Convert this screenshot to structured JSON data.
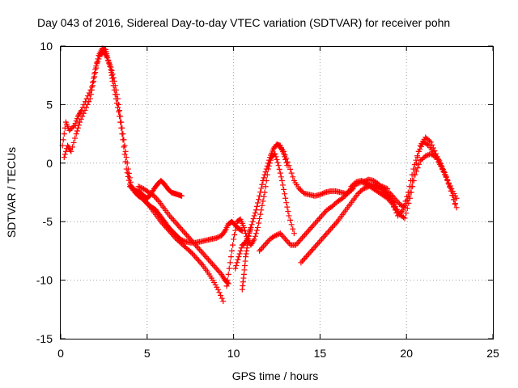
{
  "chart_data": {
    "type": "scatter",
    "title": "Day 043 of 2016, Sidereal Day-to-day VTEC variation (SDTVAR) for receiver pohn",
    "xlabel": "GPS time / hours",
    "ylabel": "SDTVAR / TECUs",
    "xlim": [
      0,
      25
    ],
    "ylim": [
      -15,
      10
    ],
    "xticks": [
      "0",
      "5",
      "10",
      "15",
      "20",
      "25"
    ],
    "yticks": [
      "10",
      "5",
      "0",
      "-5",
      "-10",
      "-15"
    ],
    "grid": true,
    "marker": "+",
    "series_color": "#ff0000",
    "series": [
      {
        "x": [
          0.1,
          0.3,
          0.5,
          0.8,
          1.0,
          1.2,
          1.5,
          1.8,
          2.0,
          2.2,
          2.4,
          2.6,
          2.7,
          2.9,
          3.0,
          3.2,
          3.4,
          3.6,
          3.8,
          4.0,
          4.2,
          4.4,
          4.6,
          4.8,
          5.0,
          5.2,
          5.4,
          5.6,
          5.8,
          6.0,
          6.2,
          6.4,
          6.6,
          6.8,
          7.0
        ],
        "y": [
          1.5,
          3.5,
          2.8,
          3.2,
          4.0,
          4.5,
          5.5,
          6.5,
          8.0,
          9.2,
          9.8,
          9.7,
          9.0,
          8.0,
          7.0,
          5.5,
          4.0,
          2.0,
          -0.5,
          -1.8,
          -2.3,
          -2.4,
          -2.5,
          -2.8,
          -3.0,
          -2.7,
          -2.2,
          -1.8,
          -1.5,
          -1.8,
          -2.2,
          -2.5,
          -2.6,
          -2.7,
          -2.8
        ]
      },
      {
        "x": [
          0.2,
          0.4,
          0.6,
          0.9,
          1.1,
          1.4,
          1.7,
          1.9,
          2.1,
          2.3,
          2.5,
          2.7,
          2.9,
          3.1,
          3.3,
          3.5,
          3.7,
          3.9,
          4.1,
          4.3,
          4.5,
          4.7,
          4.9,
          5.1,
          5.3,
          5.5,
          5.7,
          5.9,
          6.1,
          6.3,
          6.5,
          6.7,
          6.9,
          7.2,
          7.5,
          7.8,
          8.1,
          8.4,
          8.7,
          9.0,
          9.3,
          9.5,
          9.7,
          9.9,
          10.1,
          10.3,
          10.5
        ],
        "y": [
          0.5,
          1.5,
          1.0,
          2.5,
          3.5,
          4.5,
          5.5,
          7.0,
          8.5,
          9.3,
          9.5,
          9.0,
          8.2,
          7.0,
          5.5,
          3.5,
          1.5,
          -0.5,
          -2.0,
          -2.5,
          -2.8,
          -3.0,
          -3.3,
          -3.6,
          -3.8,
          -4.0,
          -4.4,
          -4.8,
          -5.2,
          -5.6,
          -5.9,
          -6.2,
          -6.5,
          -6.7,
          -6.8,
          -6.8,
          -6.7,
          -6.6,
          -6.5,
          -6.4,
          -6.2,
          -5.8,
          -5.2,
          -5.0,
          -5.3,
          -5.6,
          -5.8
        ]
      },
      {
        "x": [
          4.0,
          4.3,
          4.6,
          4.9,
          5.2,
          5.5,
          5.8,
          6.1,
          6.4,
          6.7,
          7.0,
          7.3,
          7.6,
          7.9,
          8.2,
          8.5,
          8.8,
          9.1,
          9.4
        ],
        "y": [
          -2.0,
          -2.3,
          -2.6,
          -3.2,
          -3.8,
          -4.4,
          -5.0,
          -5.5,
          -6.0,
          -6.5,
          -6.9,
          -7.3,
          -7.7,
          -8.2,
          -8.7,
          -9.3,
          -10.0,
          -10.8,
          -11.8
        ]
      },
      {
        "x": [
          4.5,
          4.8,
          5.1,
          5.4,
          5.7,
          6.0,
          6.3,
          6.6,
          6.9,
          7.2,
          7.5,
          7.8,
          8.1,
          8.4,
          8.7,
          9.0,
          9.3,
          9.5,
          9.7
        ],
        "y": [
          -2.0,
          -2.2,
          -2.5,
          -2.8,
          -3.3,
          -3.9,
          -4.5,
          -5.0,
          -5.5,
          -6.0,
          -6.5,
          -7.0,
          -7.5,
          -8.0,
          -8.5,
          -9.0,
          -9.5,
          -10.0,
          -10.3
        ]
      },
      {
        "x": [
          9.6,
          9.8,
          10.0,
          10.2,
          10.4,
          10.6,
          10.8,
          11.0,
          11.2,
          11.4,
          11.6,
          11.8,
          12.0,
          12.2,
          12.4,
          12.6,
          12.8,
          13.0,
          13.2,
          13.5
        ],
        "y": [
          -10.5,
          -8.5,
          -6.5,
          -5.0,
          -4.8,
          -5.5,
          -6.5,
          -7.0,
          -6.5,
          -5.5,
          -4.0,
          -2.5,
          -0.5,
          0.5,
          0.8,
          -0.2,
          -1.5,
          -3.0,
          -4.5,
          -6.0
        ]
      },
      {
        "x": [
          10.1,
          10.3,
          10.5,
          10.7,
          10.9,
          11.1,
          11.3,
          11.5,
          11.7,
          11.9,
          12.1,
          12.3,
          12.5,
          12.7,
          12.9,
          13.1
        ],
        "y": [
          -9.0,
          -8.0,
          -7.0,
          -6.8,
          -6.0,
          -5.0,
          -4.0,
          -2.8,
          -1.5,
          -0.5,
          0.5,
          1.2,
          1.6,
          1.5,
          0.8,
          -0.2
        ]
      },
      {
        "x": [
          10.5,
          10.6,
          10.7,
          10.8,
          10.9,
          11.0
        ],
        "y": [
          -10.8,
          -9.5,
          -8.0,
          -7.0,
          -6.0,
          -5.5
        ]
      },
      {
        "x": [
          11.5,
          11.8,
          12.1,
          12.4,
          12.7,
          13.0,
          13.3,
          13.6,
          13.9,
          14.2,
          14.5,
          14.8,
          15.1,
          15.4,
          15.7,
          16.0,
          16.3,
          16.6,
          16.9
        ],
        "y": [
          -7.5,
          -7.0,
          -6.5,
          -6.2,
          -6.0,
          -6.5,
          -7.0,
          -7.0,
          -6.5,
          -6.0,
          -5.5,
          -5.0,
          -4.5,
          -4.0,
          -3.7,
          -3.3,
          -3.0,
          -2.6,
          -2.2
        ]
      },
      {
        "x": [
          12.6,
          12.9,
          13.2,
          13.5,
          13.8,
          14.1,
          14.4,
          14.7,
          15.0,
          15.3,
          15.6,
          15.9,
          16.2,
          16.5,
          16.8,
          17.1,
          17.4,
          17.7,
          18.0,
          18.3,
          18.6,
          18.9,
          19.2,
          19.5
        ],
        "y": [
          1.5,
          1.0,
          -0.2,
          -1.5,
          -2.2,
          -2.6,
          -2.7,
          -2.8,
          -2.7,
          -2.5,
          -2.4,
          -2.4,
          -2.5,
          -2.6,
          -2.2,
          -1.8,
          -1.6,
          -1.8,
          -2.1,
          -2.4,
          -2.7,
          -3.0,
          -3.5,
          -4.2
        ]
      },
      {
        "x": [
          13.9,
          14.2,
          14.5,
          14.8,
          15.1,
          15.4,
          15.7,
          16.0,
          16.3,
          16.6,
          16.9,
          17.2,
          17.5,
          17.8,
          18.1,
          18.4,
          18.7,
          19.0,
          19.3
        ],
        "y": [
          -8.5,
          -8.0,
          -7.5,
          -7.0,
          -6.5,
          -6.0,
          -5.5,
          -5.0,
          -4.4,
          -3.8,
          -3.2,
          -2.6,
          -2.2,
          -2.0,
          -1.8,
          -2.0,
          -2.5,
          -3.0,
          -3.5
        ]
      },
      {
        "x": [
          16.8,
          17.1,
          17.4,
          17.7,
          18.0,
          18.3,
          18.6,
          18.9,
          19.2,
          19.5,
          19.8,
          20.1,
          20.4,
          20.7,
          21.0,
          21.3,
          21.6,
          21.9,
          22.2,
          22.5,
          22.8
        ],
        "y": [
          -2.0,
          -1.6,
          -1.5,
          -1.7,
          -2.0,
          -2.2,
          -2.0,
          -2.2,
          -3.5,
          -4.5,
          -4.0,
          -2.5,
          -0.5,
          1.0,
          1.8,
          1.5,
          0.8,
          0.2,
          -0.8,
          -2.0,
          -3.5
        ]
      },
      {
        "x": [
          19.0,
          19.3,
          19.6,
          19.9,
          20.2,
          20.5,
          20.8,
          21.1,
          21.4,
          21.7,
          22.0,
          22.3,
          22.6,
          22.9
        ],
        "y": [
          -2.5,
          -3.0,
          -3.5,
          -3.8,
          -2.5,
          -0.5,
          1.5,
          2.2,
          1.8,
          0.8,
          -0.2,
          -1.2,
          -2.2,
          -3.0
        ]
      },
      {
        "x": [
          17.5,
          17.8,
          18.1,
          18.4,
          18.7,
          19.0,
          19.3,
          19.6,
          19.9,
          20.2,
          20.5,
          20.8,
          21.1,
          21.4,
          21.7,
          22.0,
          22.3,
          22.6,
          22.9
        ],
        "y": [
          -1.6,
          -1.4,
          -1.5,
          -1.8,
          -2.3,
          -2.8,
          -3.5,
          -4.4,
          -4.7,
          -3.0,
          -1.0,
          0.2,
          0.6,
          0.8,
          0.5,
          -0.3,
          -1.2,
          -2.4,
          -3.8
        ]
      }
    ]
  }
}
